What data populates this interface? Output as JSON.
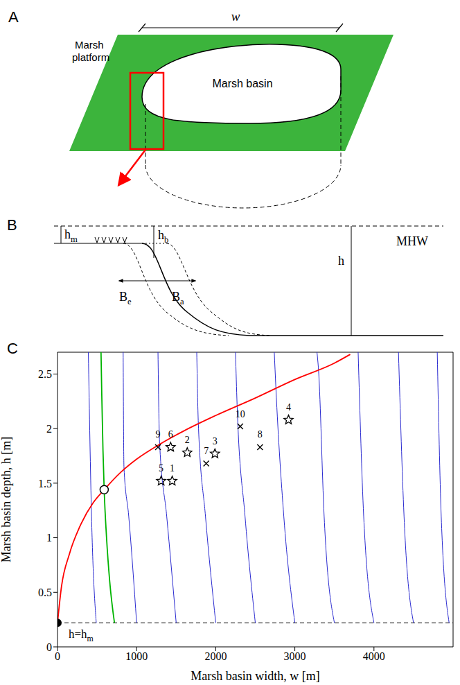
{
  "panel_a": {
    "label": "A",
    "width_label": "w",
    "platform_label": "Marsh platform",
    "basin_label": "Marsh basin"
  },
  "panel_b": {
    "label": "B",
    "marsh_height": "hm",
    "edge_height": "hb",
    "depth": "h",
    "water_level": "MHW",
    "erosion": "Be",
    "accretion": "Ba"
  },
  "chart_data": {
    "type": "line",
    "panel_label": "C",
    "xlabel": "Marsh basin width, w [m]",
    "ylabel": "Marsh basin depth, h [m]",
    "xlim": [
      0,
      5000
    ],
    "ylim": [
      0,
      2.7
    ],
    "xticks": [
      0,
      1000,
      2000,
      3000,
      4000
    ],
    "yticks": [
      0,
      0.5,
      1,
      1.5,
      2,
      2.5
    ],
    "grid": false,
    "reference_lines": [
      {
        "y": 0.22,
        "label": "h=hm",
        "line_style": "dashed",
        "color": "#000000"
      }
    ],
    "series": [
      {
        "type": "line",
        "color": "#2a2ad0",
        "line_style": "solid",
        "values": [
          [
            490,
            0.22
          ],
          [
            430,
            1.2
          ],
          [
            390,
            2.7
          ]
        ]
      },
      {
        "type": "line",
        "color": "#2a2ad0",
        "line_style": "solid",
        "values": [
          [
            1000,
            0.22
          ],
          [
            900,
            1.2
          ],
          [
            840,
            1.65
          ],
          [
            830,
            2.7
          ]
        ]
      },
      {
        "type": "line",
        "color": "#2a2ad0",
        "line_style": "solid",
        "values": [
          [
            1500,
            0.22
          ],
          [
            1380,
            1.2
          ],
          [
            1290,
            1.88
          ],
          [
            1270,
            2.7
          ]
        ]
      },
      {
        "type": "line",
        "color": "#2a2ad0",
        "line_style": "solid",
        "values": [
          [
            2000,
            0.22
          ],
          [
            1870,
            1.2
          ],
          [
            1780,
            2.05
          ],
          [
            1760,
            2.7
          ]
        ]
      },
      {
        "type": "line",
        "color": "#2a2ad0",
        "line_style": "solid",
        "values": [
          [
            2500,
            0.22
          ],
          [
            2370,
            1.2
          ],
          [
            2270,
            2.22
          ],
          [
            2250,
            2.7
          ]
        ]
      },
      {
        "type": "line",
        "color": "#2a2ad0",
        "line_style": "solid",
        "values": [
          [
            3000,
            0.22
          ],
          [
            2860,
            1.2
          ],
          [
            2760,
            2.38
          ],
          [
            2740,
            2.7
          ]
        ]
      },
      {
        "type": "line",
        "color": "#2a2ad0",
        "line_style": "solid",
        "values": [
          [
            3500,
            0.22
          ],
          [
            3370,
            1.2
          ],
          [
            3300,
            2.53
          ],
          [
            3280,
            2.7
          ]
        ]
      },
      {
        "type": "line",
        "color": "#2a2ad0",
        "line_style": "solid",
        "values": [
          [
            4000,
            0.22
          ],
          [
            3870,
            1.2
          ],
          [
            3800,
            2.7
          ]
        ]
      },
      {
        "type": "line",
        "color": "#2a2ad0",
        "line_style": "solid",
        "values": [
          [
            4500,
            0.22
          ],
          [
            4380,
            1.2
          ],
          [
            4310,
            2.7
          ]
        ]
      },
      {
        "type": "line",
        "color": "#2a2ad0",
        "line_style": "solid",
        "values": [
          [
            4950,
            0.22
          ],
          [
            4850,
            1.2
          ],
          [
            4800,
            2.7
          ]
        ]
      },
      {
        "type": "line",
        "color": "#00b400",
        "line_style": "solid",
        "values": [
          [
            550,
            2.7
          ],
          [
            560,
            2.3
          ],
          [
            575,
            1.8
          ],
          [
            590,
            1.44
          ],
          [
            620,
            1.0
          ],
          [
            660,
            0.6
          ],
          [
            720,
            0.22
          ]
        ]
      },
      {
        "type": "line",
        "color": "#ff0000",
        "line_style": "solid",
        "values": [
          [
            0,
            0.22
          ],
          [
            50,
            0.55
          ],
          [
            150,
            0.85
          ],
          [
            300,
            1.13
          ],
          [
            450,
            1.32
          ],
          [
            590,
            1.44
          ],
          [
            800,
            1.6
          ],
          [
            1000,
            1.72
          ],
          [
            1300,
            1.86
          ],
          [
            1600,
            1.98
          ],
          [
            2000,
            2.12
          ],
          [
            2500,
            2.28
          ],
          [
            3000,
            2.45
          ],
          [
            3500,
            2.6
          ],
          [
            3700,
            2.68
          ]
        ]
      },
      {
        "type": "scatter",
        "marker": "star",
        "color": "#000000",
        "values": [
          {
            "x": 1450,
            "y": 1.52,
            "id": 1
          },
          {
            "x": 1640,
            "y": 1.78,
            "id": 2
          },
          {
            "x": 1990,
            "y": 1.77,
            "id": 3
          },
          {
            "x": 2920,
            "y": 2.08,
            "id": 4
          },
          {
            "x": 1310,
            "y": 1.52,
            "id": 5
          },
          {
            "x": 1430,
            "y": 1.83,
            "id": 6
          }
        ]
      },
      {
        "type": "scatter",
        "marker": "x",
        "color": "#000000",
        "values": [
          {
            "x": 1880,
            "y": 1.68,
            "id": 7
          },
          {
            "x": 2560,
            "y": 1.83,
            "id": 8
          },
          {
            "x": 1270,
            "y": 1.83,
            "id": 9
          },
          {
            "x": 2310,
            "y": 2.02,
            "id": 10
          }
        ]
      },
      {
        "type": "scatter",
        "marker": "filled_circle",
        "color": "#000000",
        "values": [
          {
            "x": 0,
            "y": 0.22
          }
        ]
      },
      {
        "type": "scatter",
        "marker": "open_circle",
        "color": "#000000",
        "values": [
          {
            "x": 590,
            "y": 1.44
          }
        ]
      }
    ]
  }
}
